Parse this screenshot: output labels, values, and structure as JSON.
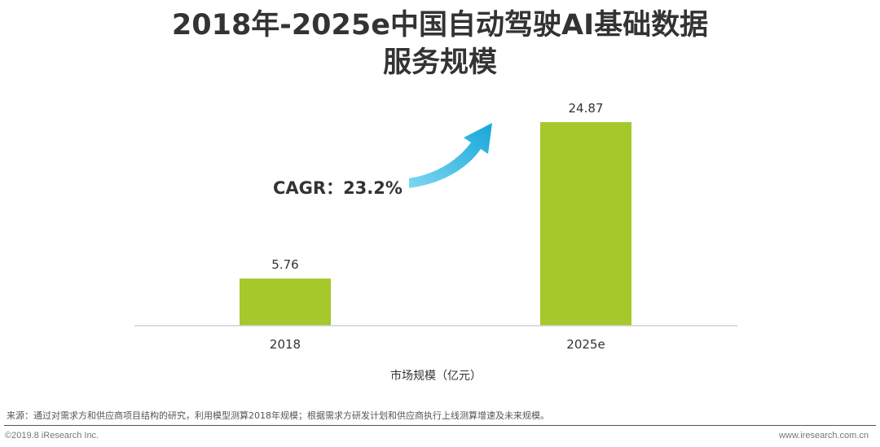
{
  "chart_data": {
    "type": "bar",
    "title_lines": [
      "2018年-2025e中国自动驾驶AI基础数据",
      "服务规模"
    ],
    "categories": [
      "2018",
      "2025e"
    ],
    "values": [
      5.76,
      24.87
    ],
    "value_labels": [
      "5.76",
      "24.87"
    ],
    "xlabel": "市场规模（亿元）",
    "ylim": [
      0,
      24.87
    ],
    "bar_color": "#a5c82b",
    "grid": false,
    "legend": "none",
    "annotation": {
      "text": "CAGR：23.2%",
      "arrow_color": "#22b4e0"
    }
  },
  "footer": {
    "source": "来源：通过对需求方和供应商项目结构的研究，利用模型测算2018年规模；根据需求方研发计划和供应商执行上线测算增速及未来规模。",
    "copyright": "©2019.8 iResearch Inc.",
    "website": "www.iresearch.com.cn"
  }
}
